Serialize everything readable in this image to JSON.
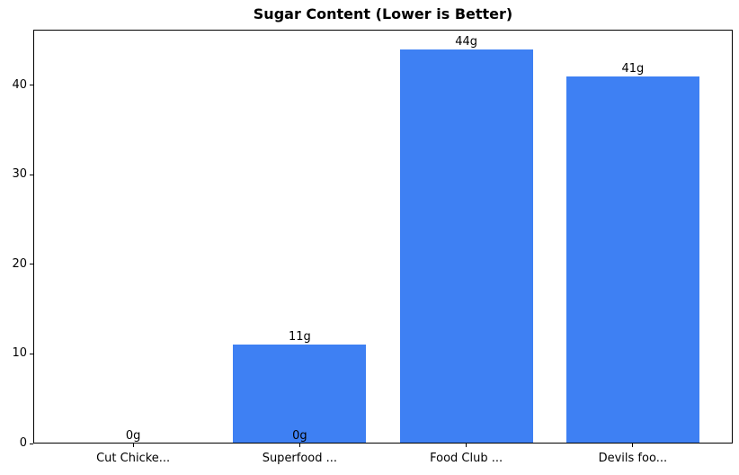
{
  "chart_data": {
    "type": "bar",
    "title": "Sugar Content (Lower is Better)",
    "categories": [
      "Cut Chicke...",
      "Superfood ...",
      "Food Club ...",
      "Devils foo..."
    ],
    "values": [
      0,
      11,
      44,
      41
    ],
    "bar_labels": [
      "0g",
      "11g",
      "44g",
      "41g"
    ],
    "extra_labels": [
      {
        "category_index": 1,
        "value": 0,
        "text": "0g"
      }
    ],
    "yticks": [
      0,
      10,
      20,
      30,
      40
    ],
    "ylim": [
      0,
      46.2
    ],
    "xlim": [
      -0.6,
      3.6
    ],
    "bar_width": 0.8,
    "bar_color": "#3e80f3",
    "axis_color": "#000000",
    "text_color": "#000000",
    "background": "#ffffff",
    "grid": false,
    "legend": false
  }
}
